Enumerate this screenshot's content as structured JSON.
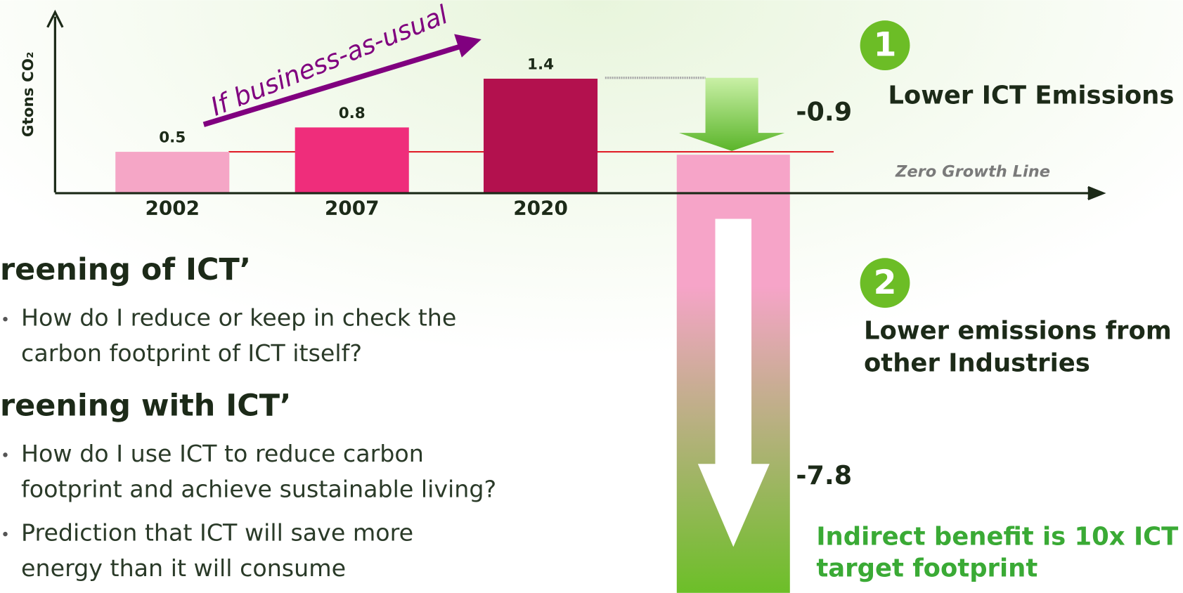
{
  "chart_data": {
    "type": "bar",
    "y_label": "Gtons CO₂",
    "categories": [
      "2002",
      "2007",
      "2020"
    ],
    "values": [
      0.5,
      0.8,
      1.4
    ],
    "colors": [
      "#f5a6c6",
      "#ef2d7b",
      "#b3114e"
    ],
    "ylim": [
      0,
      2.2
    ],
    "trend_label": "If business-as-usual",
    "zero_line_label": "Zero Growth Line"
  },
  "callouts": [
    {
      "number": "1",
      "title": [
        "Lower ICT Emissions"
      ],
      "value": -0.9
    },
    {
      "number": "2",
      "title": [
        "Lower emissions from",
        "other Industries"
      ],
      "value": -7.8
    }
  ],
  "benefit": [
    "Indirect benefit is 10x ICT",
    "target footprint"
  ],
  "sections": [
    {
      "heading": "reening of ICT’",
      "bullets": [
        [
          "How do I reduce or keep in check the",
          "carbon footprint of ICT itself?"
        ]
      ]
    },
    {
      "heading": "reening with ICT’",
      "bullets": [
        [
          "How do I use ICT to reduce carbon",
          "footprint and achieve sustainable living?"
        ],
        [
          "Prediction that ICT will save more",
          "energy than it will consume"
        ]
      ]
    }
  ]
}
